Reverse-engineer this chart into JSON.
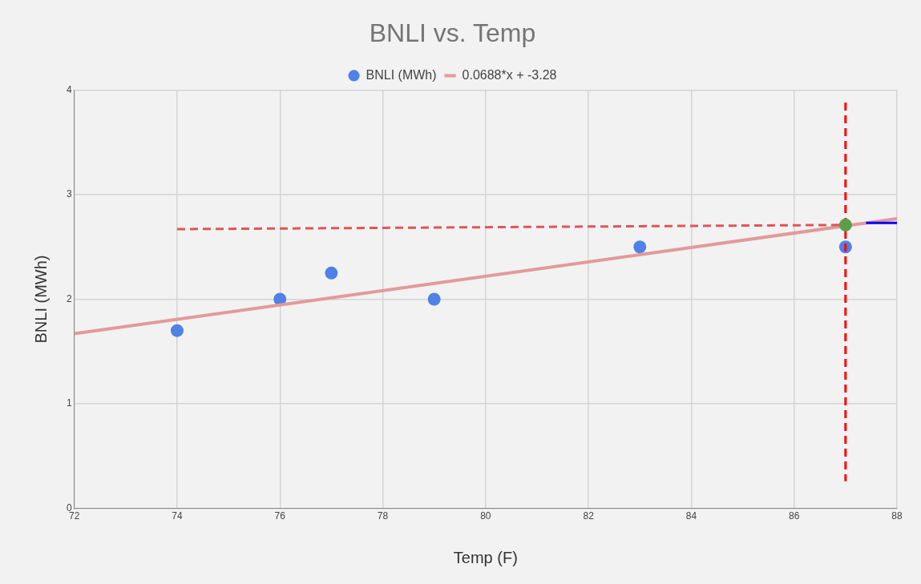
{
  "chart_data": {
    "type": "scatter",
    "title": "BNLI vs. Temp",
    "xlabel": "Temp (F)",
    "ylabel": "BNLI (MWh)",
    "xlim": [
      72,
      88
    ],
    "xticks": [
      72,
      74,
      76,
      78,
      80,
      82,
      84,
      86,
      88
    ],
    "ylim": [
      0,
      4
    ],
    "yticks": [
      0,
      1,
      2,
      3,
      4
    ],
    "grid": true,
    "legend": "top",
    "marker": "circle",
    "series": [
      {
        "name": "BNLI (MWh)",
        "color": "#4f81e6",
        "x": [
          74,
          76,
          77,
          79,
          83,
          87
        ],
        "values": [
          1.7,
          2.0,
          2.25,
          2.0,
          2.5,
          2.5
        ]
      },
      {
        "name": "0.0688*x + -3.28",
        "type": "line",
        "color": "#e29a9a",
        "x": [
          72,
          88
        ],
        "values": [
          1.67,
          2.77
        ],
        "marker": "none"
      },
      {
        "type": "line",
        "color": "#e05555",
        "x": [
          74,
          87
        ],
        "values": [
          2.67,
          2.71
        ],
        "marker": "none",
        "line_style": "dashed"
      },
      {
        "type": "line",
        "color": "#ff0000",
        "x": [
          87,
          87
        ],
        "values": [
          3.88,
          0.26
        ],
        "marker": "none",
        "line_style": "dashed"
      },
      {
        "type": "line",
        "color": "#0000ff",
        "x": [
          87.4,
          88
        ],
        "values": [
          2.73,
          2.73
        ],
        "marker": "none"
      },
      {
        "type": "scatter",
        "color": "#5a9e4a",
        "x": [
          87
        ],
        "values": [
          2.71
        ]
      }
    ]
  }
}
